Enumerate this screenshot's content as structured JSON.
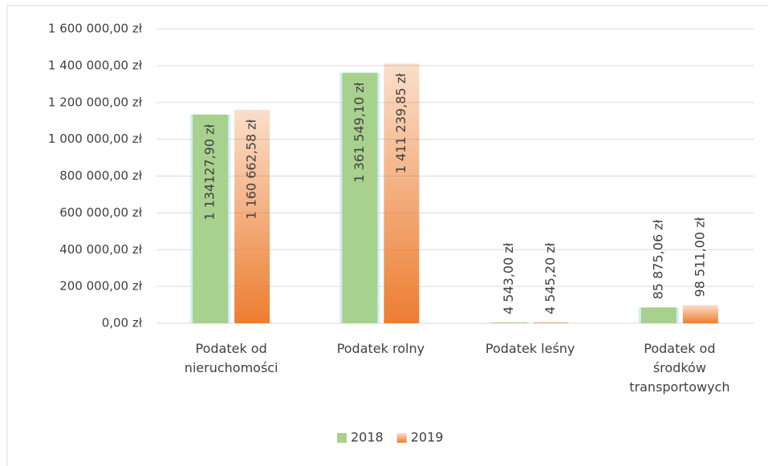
{
  "chart_data": {
    "type": "bar",
    "categories": [
      "Podatek od nieruchomości",
      "Podatek rolny",
      "Podatek leśny",
      "Podatek od środków transportowych"
    ],
    "series": [
      {
        "name": "2018",
        "color": "#a9d18e",
        "values": [
          1134127.9,
          1361549.1,
          4543.0,
          85875.06
        ],
        "value_labels": [
          "1 134127,90 zł",
          "1 361 549,10 zł",
          "4 543,00 zł",
          "85 875,06 zł"
        ]
      },
      {
        "name": "2019",
        "color": "#ed7d31",
        "values": [
          1160662.58,
          1411239.85,
          4545.2,
          98511.0
        ],
        "value_labels": [
          "1 160 662,58 zł",
          "1 411 239,85 zł",
          "4 545,20 zł",
          "98 511,00 zł"
        ]
      }
    ],
    "ylim": [
      0,
      1600000
    ],
    "yticks": [
      {
        "value": 0,
        "label": "0,00 zł"
      },
      {
        "value": 200000,
        "label": "200 000,00 zł"
      },
      {
        "value": 400000,
        "label": "400 000,00 zł"
      },
      {
        "value": 600000,
        "label": "600 000,00 zł"
      },
      {
        "value": 800000,
        "label": "800 000,00 zł"
      },
      {
        "value": 1000000,
        "label": "1 000 000,00 zł"
      },
      {
        "value": 1200000,
        "label": "1 200 000,00 zł"
      },
      {
        "value": 1400000,
        "label": "1 400 000,00 zł"
      },
      {
        "value": 1600000,
        "label": "1 600 000,00 zł"
      }
    ],
    "grid": true,
    "legend": "bottom"
  }
}
